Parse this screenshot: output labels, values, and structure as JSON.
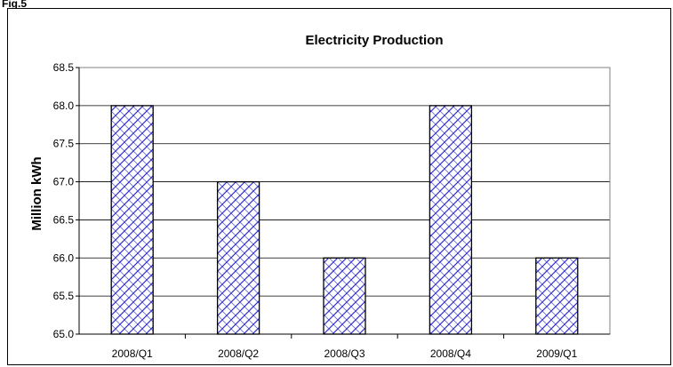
{
  "page": {
    "top_label": "Fig.5"
  },
  "chart_data": {
    "type": "bar",
    "title": "Electricity Production",
    "xlabel": "",
    "ylabel": "Million kWh",
    "categories": [
      "2008/Q1",
      "2008/Q2",
      "2008/Q3",
      "2008/Q4",
      "2009/Q1"
    ],
    "values": [
      68.0,
      67.0,
      66.0,
      68.0,
      66.0
    ],
    "ylim": [
      65.0,
      68.5
    ],
    "yticks": [
      "65.0",
      "65.5",
      "66.0",
      "66.5",
      "67.0",
      "67.5",
      "68.0",
      "68.5"
    ],
    "grid": true,
    "legend": "none",
    "bar_color": "#3333cc",
    "bar_pattern": "crosshatch"
  }
}
